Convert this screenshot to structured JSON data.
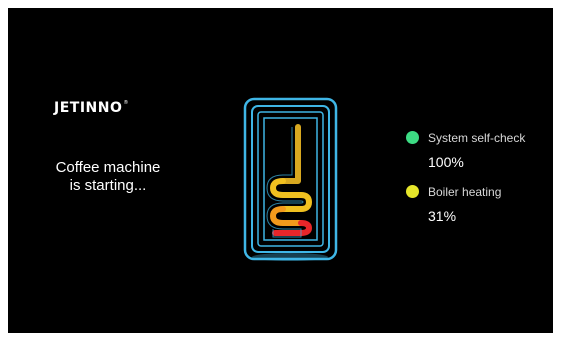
{
  "brand": {
    "name": "JETINNO",
    "registered_mark": "®"
  },
  "status": {
    "line1": "Coffee machine",
    "line2": "is starting..."
  },
  "checks": [
    {
      "label": "System self-check",
      "value": "100%",
      "progress": 1.0,
      "color": "#3ddc84"
    },
    {
      "label": "Boiler heating",
      "value": "31%",
      "progress": 0.31,
      "color": "#e6e62a"
    }
  ],
  "colors": {
    "background": "#000000",
    "outline": "#3fb6e6",
    "coil_yellow": "#f0c020",
    "coil_orange": "#f39a1c",
    "coil_red": "#e8262a"
  },
  "icons": {
    "device": "boiler-heating-coil-icon"
  }
}
